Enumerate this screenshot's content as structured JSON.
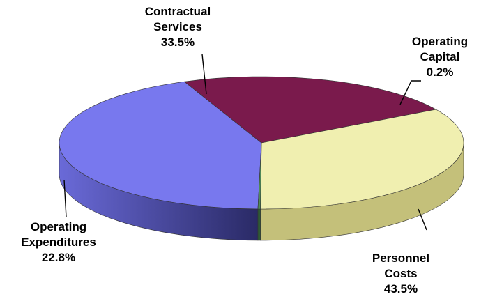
{
  "chart_data": {
    "type": "pie",
    "style": "3d",
    "title": "",
    "legend": "none",
    "slices": [
      {
        "name": "Personnel Costs",
        "label_lines": [
          "Personnel",
          "Costs"
        ],
        "value": 43.5,
        "percent_label": "43.5%",
        "color": "#7878ee",
        "side_color": "#3a3a80"
      },
      {
        "name": "Operating Expenditures",
        "label_lines": [
          "Operating",
          "Expenditures"
        ],
        "value": 22.8,
        "percent_label": "22.8%",
        "color": "#7a1a4c",
        "side_color": "#58103a"
      },
      {
        "name": "Contractual Services",
        "label_lines": [
          "Contractual",
          "Services"
        ],
        "value": 33.5,
        "percent_label": "33.5%",
        "color": "#f0efb0",
        "side_color": "#c4c07a"
      },
      {
        "name": "Operating Capital",
        "label_lines": [
          "Operating",
          "Capital"
        ],
        "value": 0.2,
        "percent_label": "0.2%",
        "color": "#4f8a5a",
        "side_color": "#2e5a36"
      }
    ]
  }
}
